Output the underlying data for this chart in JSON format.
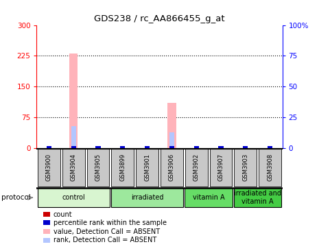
{
  "title": "GDS238 / rc_AA866455_g_at",
  "samples": [
    "GSM3900",
    "GSM3904",
    "GSM3905",
    "GSM3899",
    "GSM3901",
    "GSM3906",
    "GSM3902",
    "GSM3907",
    "GSM3903",
    "GSM3908"
  ],
  "groups": [
    {
      "label": "control",
      "color": "#d8f5d0",
      "start": 0,
      "end": 3
    },
    {
      "label": "irradiated",
      "color": "#9de89d",
      "start": 3,
      "end": 6
    },
    {
      "label": "vitamin A",
      "color": "#66dd66",
      "start": 6,
      "end": 8
    },
    {
      "label": "irradiated and\nvitamin A",
      "color": "#44cc44",
      "start": 8,
      "end": 10
    }
  ],
  "value_absent": [
    0,
    230,
    0,
    0,
    0,
    110,
    0,
    0,
    0,
    0
  ],
  "rank_absent": [
    0,
    18,
    0,
    0,
    0,
    13,
    0,
    0,
    0,
    0
  ],
  "rank_present_all": [
    1.5,
    1.5,
    1.5,
    1.5,
    1.5,
    1.5,
    1.5,
    1.5,
    1.5,
    1.5
  ],
  "ylim_left": [
    0,
    300
  ],
  "ylim_right": [
    0,
    100
  ],
  "yticks_left": [
    0,
    75,
    150,
    225,
    300
  ],
  "yticks_right": [
    0,
    25,
    50,
    75,
    100
  ],
  "yticklabels_right": [
    "0",
    "25",
    "50",
    "75",
    "100%"
  ],
  "color_absent_bar": "#ffb3ba",
  "color_absent_rank": "#b3c6ff",
  "color_present_bar": "#ff0000",
  "color_present_rank": "#0000cc",
  "bg_color": "#ffffff",
  "sample_box_color": "#c8c8c8",
  "legend_items": [
    {
      "color": "#cc0000",
      "label": "count"
    },
    {
      "color": "#0000cc",
      "label": "percentile rank within the sample"
    },
    {
      "color": "#ffb3ba",
      "label": "value, Detection Call = ABSENT"
    },
    {
      "color": "#b3c6ff",
      "label": "rank, Detection Call = ABSENT"
    }
  ]
}
